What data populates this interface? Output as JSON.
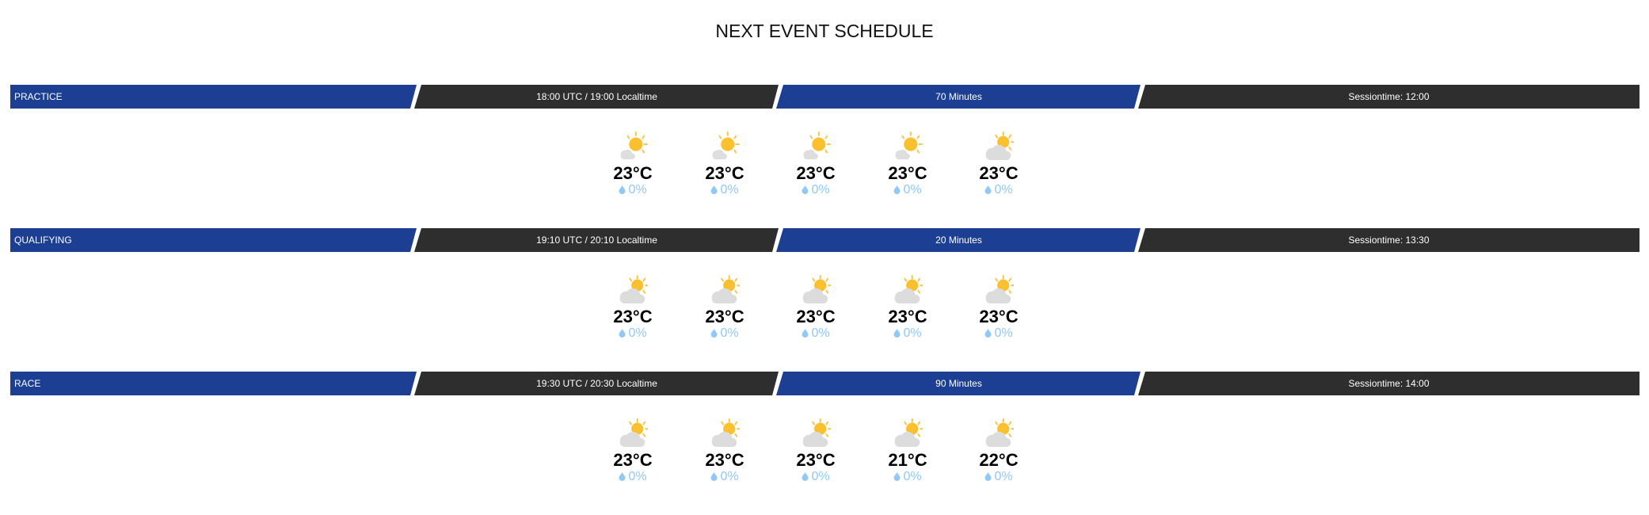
{
  "title": "NEXT EVENT SCHEDULE",
  "colors": {
    "blue_segment": "#1c3f94",
    "dark_segment": "#2e2e2e",
    "rain_text": "#90c8f8"
  },
  "sessions": [
    {
      "name": "PRACTICE",
      "time": "18:00 UTC / 19:00 Localtime",
      "duration": "70 Minutes",
      "sessiontime": "Sessiontime: 12:00",
      "forecast": [
        {
          "icon": "sun-behind-small-cloud",
          "temp": "23°C",
          "rain": "0%"
        },
        {
          "icon": "sun-behind-small-cloud",
          "temp": "23°C",
          "rain": "0%"
        },
        {
          "icon": "sun-behind-small-cloud",
          "temp": "23°C",
          "rain": "0%"
        },
        {
          "icon": "sun-behind-small-cloud",
          "temp": "23°C",
          "rain": "0%"
        },
        {
          "icon": "partly-cloudy",
          "temp": "23°C",
          "rain": "0%"
        }
      ]
    },
    {
      "name": "QUALIFYING",
      "time": "19:10 UTC / 20:10 Localtime",
      "duration": "20 Minutes",
      "sessiontime": "Sessiontime: 13:30",
      "forecast": [
        {
          "icon": "partly-cloudy",
          "temp": "23°C",
          "rain": "0%"
        },
        {
          "icon": "partly-cloudy",
          "temp": "23°C",
          "rain": "0%"
        },
        {
          "icon": "partly-cloudy",
          "temp": "23°C",
          "rain": "0%"
        },
        {
          "icon": "partly-cloudy",
          "temp": "23°C",
          "rain": "0%"
        },
        {
          "icon": "partly-cloudy",
          "temp": "23°C",
          "rain": "0%"
        }
      ]
    },
    {
      "name": "RACE",
      "time": "19:30 UTC / 20:30 Localtime",
      "duration": "90 Minutes",
      "sessiontime": "Sessiontime: 14:00",
      "forecast": [
        {
          "icon": "partly-cloudy",
          "temp": "23°C",
          "rain": "0%"
        },
        {
          "icon": "partly-cloudy",
          "temp": "23°C",
          "rain": "0%"
        },
        {
          "icon": "partly-cloudy",
          "temp": "23°C",
          "rain": "0%"
        },
        {
          "icon": "partly-cloudy",
          "temp": "21°C",
          "rain": "0%"
        },
        {
          "icon": "partly-cloudy",
          "temp": "22°C",
          "rain": "0%"
        }
      ]
    }
  ]
}
